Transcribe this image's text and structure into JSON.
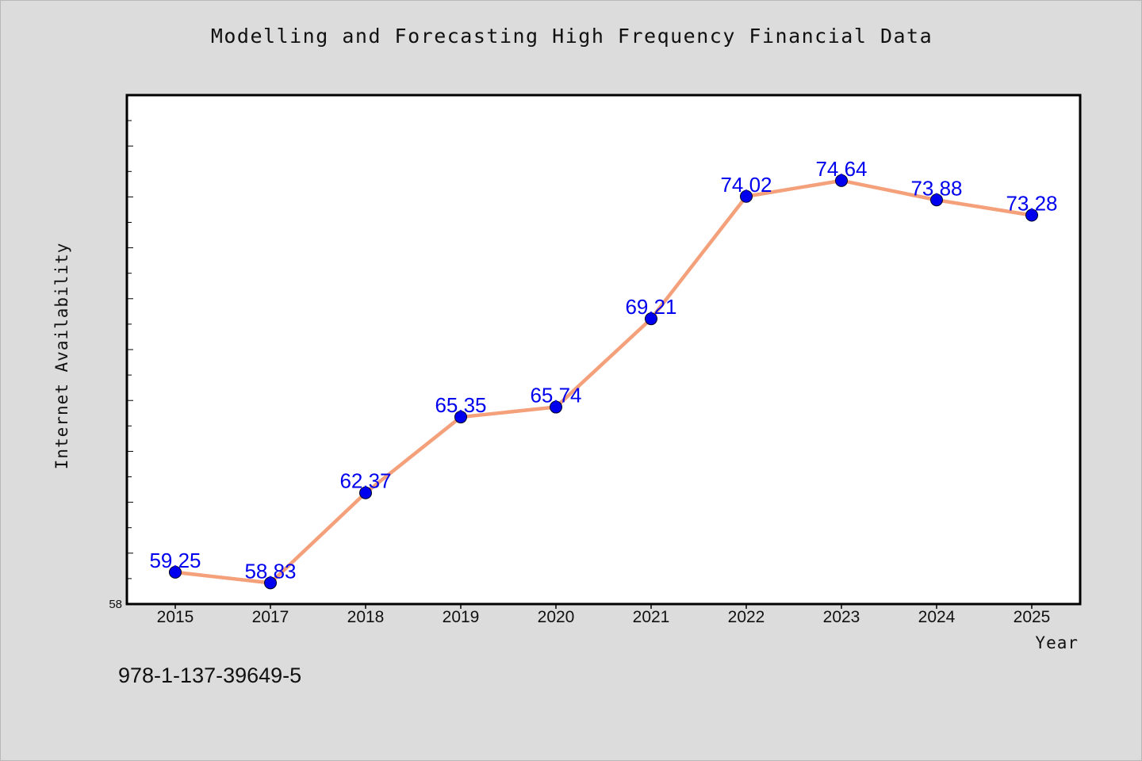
{
  "chart_data": {
    "type": "line",
    "title": "Modelling and Forecasting High Frequency Financial Data",
    "xlabel": "Year",
    "ylabel": "Internet Availability",
    "categories": [
      "2015",
      "2017",
      "2018",
      "2019",
      "2020",
      "2021",
      "2022",
      "2023",
      "2024",
      "2025"
    ],
    "values": [
      59.25,
      58.83,
      62.37,
      65.35,
      65.74,
      69.21,
      74.02,
      74.64,
      73.88,
      73.28
    ],
    "value_labels": [
      "59.25",
      "58.83",
      "62.37",
      "65.35",
      "65.74",
      "69.21",
      "74.02",
      "74.64",
      "73.88",
      "73.28"
    ],
    "ylim": [
      58,
      78
    ],
    "y_tick_step": 1,
    "y_tick_labels_shown": [
      "58"
    ],
    "grid": false,
    "line_color": "#f4a07a",
    "marker_color": "#0000ee",
    "label_color": "#0000ee"
  },
  "footer": {
    "isbn": "978-1-137-39649-5"
  }
}
